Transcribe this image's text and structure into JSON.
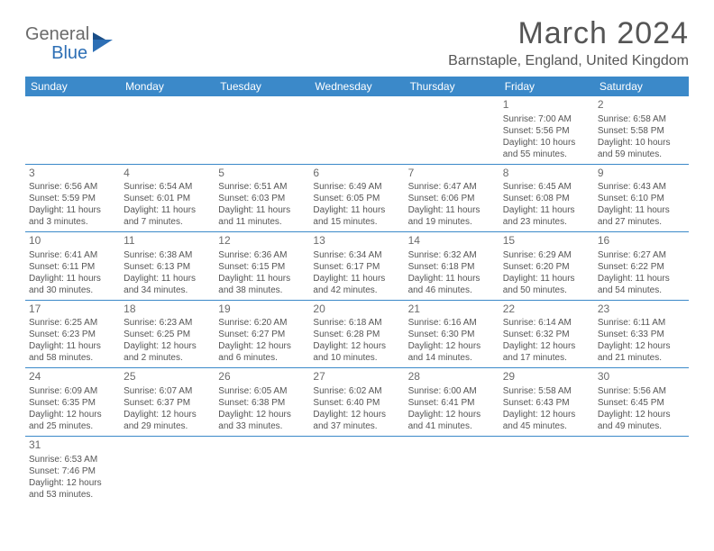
{
  "logo": {
    "general": "General",
    "blue": "Blue"
  },
  "title": "March 2024",
  "subtitle": "Barnstaple, England, United Kingdom",
  "colors": {
    "header_bg": "#3b89c9",
    "header_text": "#ffffff",
    "border": "#3b89c9",
    "text": "#555555",
    "logo_blue": "#2d6fb5",
    "logo_gray": "#6b6b6b"
  },
  "dayheaders": [
    "Sunday",
    "Monday",
    "Tuesday",
    "Wednesday",
    "Thursday",
    "Friday",
    "Saturday"
  ],
  "weeks": [
    [
      null,
      null,
      null,
      null,
      null,
      {
        "n": "1",
        "sr": "Sunrise: 7:00 AM",
        "ss": "Sunset: 5:56 PM",
        "dl1": "Daylight: 10 hours",
        "dl2": "and 55 minutes."
      },
      {
        "n": "2",
        "sr": "Sunrise: 6:58 AM",
        "ss": "Sunset: 5:58 PM",
        "dl1": "Daylight: 10 hours",
        "dl2": "and 59 minutes."
      }
    ],
    [
      {
        "n": "3",
        "sr": "Sunrise: 6:56 AM",
        "ss": "Sunset: 5:59 PM",
        "dl1": "Daylight: 11 hours",
        "dl2": "and 3 minutes."
      },
      {
        "n": "4",
        "sr": "Sunrise: 6:54 AM",
        "ss": "Sunset: 6:01 PM",
        "dl1": "Daylight: 11 hours",
        "dl2": "and 7 minutes."
      },
      {
        "n": "5",
        "sr": "Sunrise: 6:51 AM",
        "ss": "Sunset: 6:03 PM",
        "dl1": "Daylight: 11 hours",
        "dl2": "and 11 minutes."
      },
      {
        "n": "6",
        "sr": "Sunrise: 6:49 AM",
        "ss": "Sunset: 6:05 PM",
        "dl1": "Daylight: 11 hours",
        "dl2": "and 15 minutes."
      },
      {
        "n": "7",
        "sr": "Sunrise: 6:47 AM",
        "ss": "Sunset: 6:06 PM",
        "dl1": "Daylight: 11 hours",
        "dl2": "and 19 minutes."
      },
      {
        "n": "8",
        "sr": "Sunrise: 6:45 AM",
        "ss": "Sunset: 6:08 PM",
        "dl1": "Daylight: 11 hours",
        "dl2": "and 23 minutes."
      },
      {
        "n": "9",
        "sr": "Sunrise: 6:43 AM",
        "ss": "Sunset: 6:10 PM",
        "dl1": "Daylight: 11 hours",
        "dl2": "and 27 minutes."
      }
    ],
    [
      {
        "n": "10",
        "sr": "Sunrise: 6:41 AM",
        "ss": "Sunset: 6:11 PM",
        "dl1": "Daylight: 11 hours",
        "dl2": "and 30 minutes."
      },
      {
        "n": "11",
        "sr": "Sunrise: 6:38 AM",
        "ss": "Sunset: 6:13 PM",
        "dl1": "Daylight: 11 hours",
        "dl2": "and 34 minutes."
      },
      {
        "n": "12",
        "sr": "Sunrise: 6:36 AM",
        "ss": "Sunset: 6:15 PM",
        "dl1": "Daylight: 11 hours",
        "dl2": "and 38 minutes."
      },
      {
        "n": "13",
        "sr": "Sunrise: 6:34 AM",
        "ss": "Sunset: 6:17 PM",
        "dl1": "Daylight: 11 hours",
        "dl2": "and 42 minutes."
      },
      {
        "n": "14",
        "sr": "Sunrise: 6:32 AM",
        "ss": "Sunset: 6:18 PM",
        "dl1": "Daylight: 11 hours",
        "dl2": "and 46 minutes."
      },
      {
        "n": "15",
        "sr": "Sunrise: 6:29 AM",
        "ss": "Sunset: 6:20 PM",
        "dl1": "Daylight: 11 hours",
        "dl2": "and 50 minutes."
      },
      {
        "n": "16",
        "sr": "Sunrise: 6:27 AM",
        "ss": "Sunset: 6:22 PM",
        "dl1": "Daylight: 11 hours",
        "dl2": "and 54 minutes."
      }
    ],
    [
      {
        "n": "17",
        "sr": "Sunrise: 6:25 AM",
        "ss": "Sunset: 6:23 PM",
        "dl1": "Daylight: 11 hours",
        "dl2": "and 58 minutes."
      },
      {
        "n": "18",
        "sr": "Sunrise: 6:23 AM",
        "ss": "Sunset: 6:25 PM",
        "dl1": "Daylight: 12 hours",
        "dl2": "and 2 minutes."
      },
      {
        "n": "19",
        "sr": "Sunrise: 6:20 AM",
        "ss": "Sunset: 6:27 PM",
        "dl1": "Daylight: 12 hours",
        "dl2": "and 6 minutes."
      },
      {
        "n": "20",
        "sr": "Sunrise: 6:18 AM",
        "ss": "Sunset: 6:28 PM",
        "dl1": "Daylight: 12 hours",
        "dl2": "and 10 minutes."
      },
      {
        "n": "21",
        "sr": "Sunrise: 6:16 AM",
        "ss": "Sunset: 6:30 PM",
        "dl1": "Daylight: 12 hours",
        "dl2": "and 14 minutes."
      },
      {
        "n": "22",
        "sr": "Sunrise: 6:14 AM",
        "ss": "Sunset: 6:32 PM",
        "dl1": "Daylight: 12 hours",
        "dl2": "and 17 minutes."
      },
      {
        "n": "23",
        "sr": "Sunrise: 6:11 AM",
        "ss": "Sunset: 6:33 PM",
        "dl1": "Daylight: 12 hours",
        "dl2": "and 21 minutes."
      }
    ],
    [
      {
        "n": "24",
        "sr": "Sunrise: 6:09 AM",
        "ss": "Sunset: 6:35 PM",
        "dl1": "Daylight: 12 hours",
        "dl2": "and 25 minutes."
      },
      {
        "n": "25",
        "sr": "Sunrise: 6:07 AM",
        "ss": "Sunset: 6:37 PM",
        "dl1": "Daylight: 12 hours",
        "dl2": "and 29 minutes."
      },
      {
        "n": "26",
        "sr": "Sunrise: 6:05 AM",
        "ss": "Sunset: 6:38 PM",
        "dl1": "Daylight: 12 hours",
        "dl2": "and 33 minutes."
      },
      {
        "n": "27",
        "sr": "Sunrise: 6:02 AM",
        "ss": "Sunset: 6:40 PM",
        "dl1": "Daylight: 12 hours",
        "dl2": "and 37 minutes."
      },
      {
        "n": "28",
        "sr": "Sunrise: 6:00 AM",
        "ss": "Sunset: 6:41 PM",
        "dl1": "Daylight: 12 hours",
        "dl2": "and 41 minutes."
      },
      {
        "n": "29",
        "sr": "Sunrise: 5:58 AM",
        "ss": "Sunset: 6:43 PM",
        "dl1": "Daylight: 12 hours",
        "dl2": "and 45 minutes."
      },
      {
        "n": "30",
        "sr": "Sunrise: 5:56 AM",
        "ss": "Sunset: 6:45 PM",
        "dl1": "Daylight: 12 hours",
        "dl2": "and 49 minutes."
      }
    ],
    [
      {
        "n": "31",
        "sr": "Sunrise: 6:53 AM",
        "ss": "Sunset: 7:46 PM",
        "dl1": "Daylight: 12 hours",
        "dl2": "and 53 minutes."
      },
      null,
      null,
      null,
      null,
      null,
      null
    ]
  ]
}
